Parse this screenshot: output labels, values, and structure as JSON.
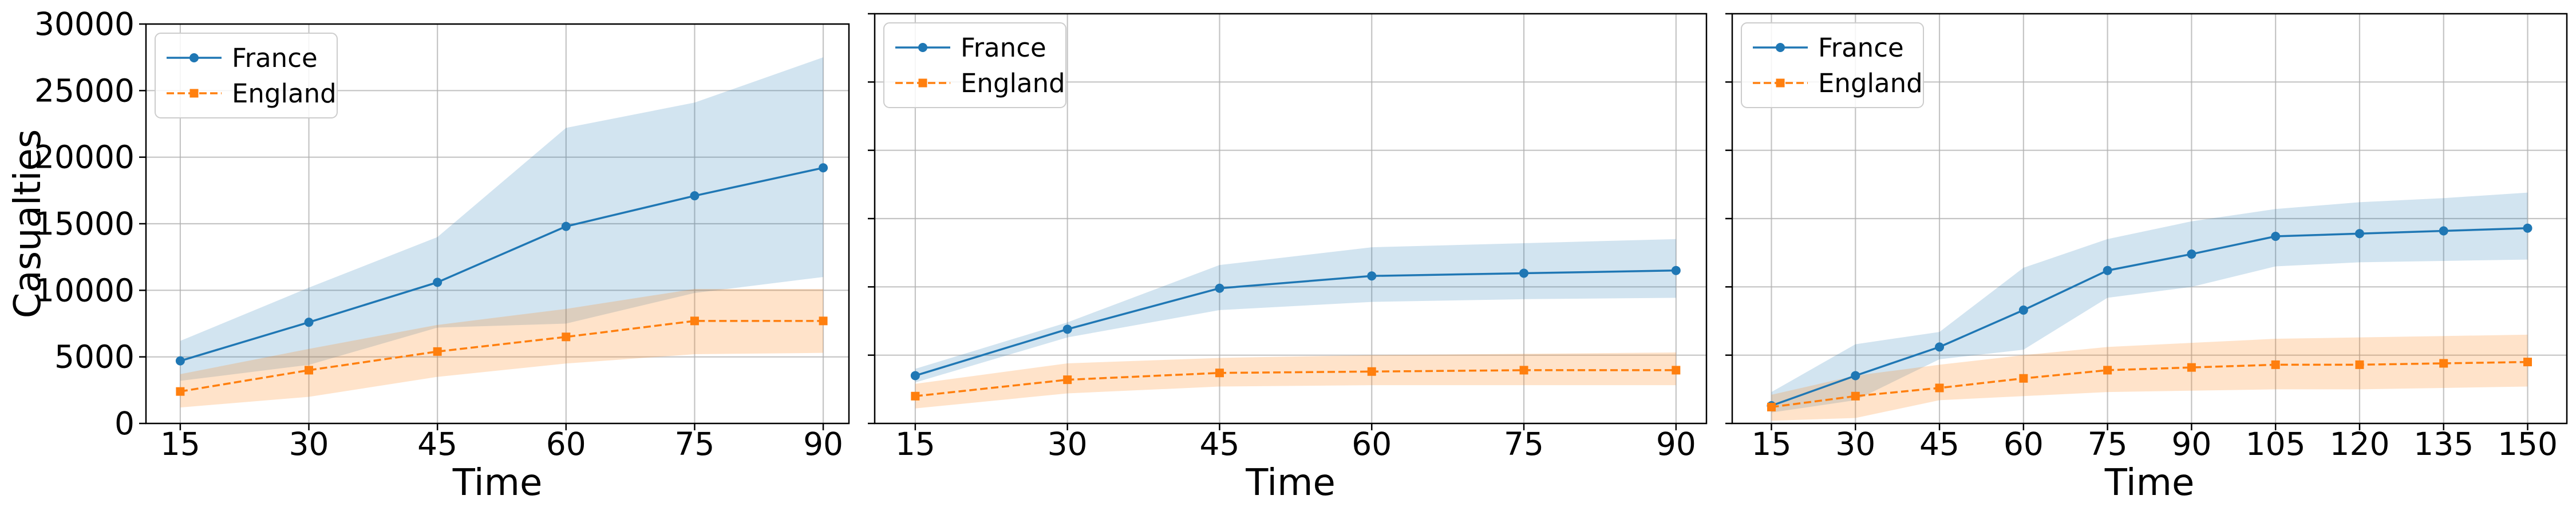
{
  "colors": {
    "france": "#1f77b4",
    "france_band": "#1f77b4",
    "england": "#ff7f0e",
    "england_band": "#ff7f0e",
    "grid": "#b0b0b0",
    "axis": "#000000"
  },
  "chart_data": [
    {
      "type": "line",
      "xlabel": "Time",
      "ylabel": "Casualties",
      "x": [
        15,
        30,
        45,
        60,
        75,
        90
      ],
      "xticks": [
        "15",
        "30",
        "45",
        "60",
        "75",
        "90"
      ],
      "yticks": [
        "0",
        "5000",
        "10000",
        "15000",
        "20000",
        "25000",
        "30000"
      ],
      "ylim": [
        0,
        30000
      ],
      "xlim": [
        11,
        93
      ],
      "grid": true,
      "legend": "top-left",
      "series": [
        {
          "name": "France",
          "marker": "circle",
          "linestyle": "solid",
          "values": [
            4700,
            7600,
            10600,
            14800,
            17100,
            19200
          ],
          "lower": [
            3200,
            4400,
            7200,
            7500,
            9800,
            11000
          ],
          "upper": [
            6200,
            10200,
            14000,
            22200,
            24100,
            27500
          ]
        },
        {
          "name": "England",
          "marker": "square",
          "linestyle": "dashed",
          "values": [
            2400,
            4000,
            5400,
            6500,
            7700,
            7700
          ],
          "lower": [
            1200,
            2000,
            3500,
            4500,
            5200,
            5300
          ],
          "upper": [
            3700,
            5600,
            7400,
            8600,
            10100,
            10100
          ]
        }
      ]
    },
    {
      "type": "line",
      "xlabel": "Time",
      "ylabel": "",
      "x": [
        15,
        30,
        45,
        60,
        75,
        90
      ],
      "xticks": [
        "15",
        "30",
        "45",
        "60",
        "75",
        "90"
      ],
      "ylim": [
        0,
        30000
      ],
      "xlim": [
        11,
        93
      ],
      "grid": true,
      "shared_y": true,
      "legend": "top-left",
      "series": [
        {
          "name": "France",
          "marker": "circle",
          "linestyle": "solid",
          "values": [
            3500,
            6900,
            9900,
            10800,
            11000,
            11200
          ],
          "lower": [
            3000,
            6300,
            8300,
            8900,
            9100,
            9200
          ],
          "upper": [
            4000,
            7400,
            11600,
            12900,
            13200,
            13500
          ]
        },
        {
          "name": "England",
          "marker": "square",
          "linestyle": "dashed",
          "values": [
            2000,
            3200,
            3700,
            3800,
            3900,
            3900
          ],
          "lower": [
            1100,
            2200,
            2700,
            2800,
            2800,
            2800
          ],
          "upper": [
            2900,
            4400,
            4800,
            5000,
            5100,
            5200
          ]
        }
      ]
    },
    {
      "type": "line",
      "xlabel": "Time",
      "ylabel": "",
      "x": [
        15,
        30,
        45,
        60,
        75,
        90,
        105,
        120,
        135,
        150
      ],
      "xticks": [
        "15",
        "30",
        "45",
        "60",
        "75",
        "90",
        "105",
        "120",
        "135",
        "150"
      ],
      "ylim": [
        0,
        30000
      ],
      "xlim": [
        8,
        157
      ],
      "grid": true,
      "shared_y": true,
      "legend": "top-left",
      "series": [
        {
          "name": "France",
          "marker": "circle",
          "linestyle": "solid",
          "values": [
            1300,
            3500,
            5600,
            8300,
            11200,
            12400,
            13700,
            13900,
            14100,
            14300
          ],
          "lower": [
            800,
            1700,
            4700,
            5400,
            9200,
            10000,
            11500,
            11800,
            11900,
            12000
          ],
          "upper": [
            2300,
            5800,
            6700,
            11400,
            13500,
            14800,
            15700,
            16200,
            16500,
            16900
          ]
        },
        {
          "name": "England",
          "marker": "square",
          "linestyle": "dashed",
          "values": [
            1200,
            2000,
            2600,
            3300,
            3900,
            4100,
            4300,
            4300,
            4400,
            4500
          ],
          "lower": [
            200,
            400,
            1700,
            2000,
            2300,
            2400,
            2500,
            2500,
            2600,
            2700
          ],
          "upper": [
            2100,
            3500,
            4300,
            5000,
            5600,
            5900,
            6200,
            6300,
            6400,
            6500
          ]
        }
      ]
    }
  ]
}
